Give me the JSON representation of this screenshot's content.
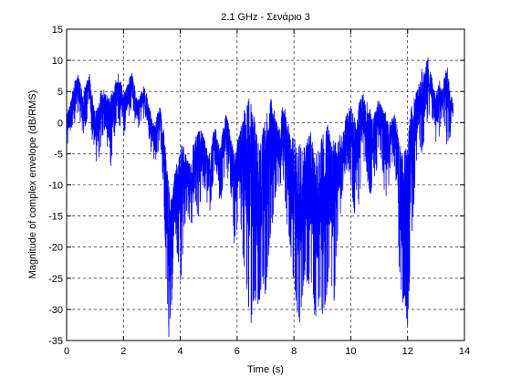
{
  "chart_data": {
    "type": "line",
    "title": "2.1 GHz - Σενάριο 3",
    "xlabel": "Time (s)",
    "ylabel": "Magnitude of complex envelope (dB/RMS)",
    "xlim": [
      0,
      14
    ],
    "ylim": [
      -35,
      15
    ],
    "xticks": [
      0,
      2,
      4,
      6,
      8,
      10,
      12,
      14
    ],
    "yticks": [
      15,
      10,
      5,
      0,
      -5,
      -10,
      -15,
      -20,
      -25,
      -30,
      -35
    ],
    "grid": true,
    "grid_style": "dashed",
    "series_color": "#0000ff",
    "series": [
      {
        "x": [
          0.0,
          0.1,
          0.2,
          0.3,
          0.4,
          0.5,
          0.6,
          0.7,
          0.8,
          0.9,
          1.0,
          1.1,
          1.2,
          1.3,
          1.4,
          1.5,
          1.6,
          1.7,
          1.8,
          1.9,
          2.0,
          2.1,
          2.2,
          2.3,
          2.4,
          2.5,
          2.6,
          2.7,
          2.8,
          2.9,
          3.0,
          3.1,
          3.2,
          3.3,
          3.4,
          3.5,
          3.6,
          3.7,
          3.8,
          3.9,
          4.0,
          4.1,
          4.2,
          4.3,
          4.4,
          4.5,
          4.6,
          4.7,
          4.8,
          4.9,
          5.0,
          5.1,
          5.2,
          5.3,
          5.4,
          5.5,
          5.6,
          5.7,
          5.8,
          5.9,
          6.0,
          6.1,
          6.2,
          6.3,
          6.4,
          6.5,
          6.6,
          6.7,
          6.8,
          6.9,
          7.0,
          7.1,
          7.2,
          7.3,
          7.4,
          7.5,
          7.6,
          7.7,
          7.8,
          7.9,
          8.0,
          8.1,
          8.2,
          8.3,
          8.4,
          8.5,
          8.6,
          8.7,
          8.8,
          8.9,
          9.0,
          9.1,
          9.2,
          9.3,
          9.4,
          9.5,
          9.6,
          9.7,
          9.8,
          9.9,
          10.0,
          10.1,
          10.2,
          10.3,
          10.4,
          10.5,
          10.6,
          10.7,
          10.8,
          10.9,
          11.0,
          11.1,
          11.2,
          11.3,
          11.4,
          11.5,
          11.6,
          11.7,
          11.8,
          11.9,
          12.0,
          12.1,
          12.2,
          12.3,
          12.4,
          12.5,
          12.6,
          12.7,
          12.8,
          12.9,
          13.0,
          13.1,
          13.2,
          13.3,
          13.4,
          13.5,
          13.6
        ],
        "lo": [
          -5,
          -3,
          -1,
          0,
          1,
          -1,
          -2,
          0,
          1,
          -3,
          -6,
          -8,
          -4,
          -2,
          -1,
          -10,
          -5,
          -2,
          0,
          -1,
          -3,
          0,
          1,
          2,
          0,
          -2,
          0,
          1,
          -1,
          -4,
          -5,
          -7,
          -5,
          -4,
          -10,
          -25,
          -35,
          -30,
          -15,
          -22,
          -27,
          -20,
          -15,
          -16,
          -18,
          -12,
          -16,
          -14,
          -10,
          -12,
          -16,
          -12,
          -9,
          -12,
          -14,
          -10,
          -8,
          -10,
          -12,
          -20,
          -17,
          -14,
          -22,
          -25,
          -30,
          -33,
          -28,
          -31,
          -29,
          -25,
          -28,
          -22,
          -18,
          -14,
          -10,
          -12,
          -8,
          -14,
          -18,
          -22,
          -26,
          -30,
          -33,
          -28,
          -24,
          -27,
          -25,
          -30,
          -33,
          -28,
          -32,
          -30,
          -26,
          -24,
          -31,
          -20,
          -16,
          -12,
          -9,
          -7,
          -10,
          -14,
          -18,
          -12,
          -8,
          -6,
          -10,
          -12,
          -9,
          -8,
          -5,
          -8,
          -12,
          -14,
          -8,
          -6,
          -10,
          -23,
          -30,
          -28,
          -34,
          -22,
          -15,
          -8,
          -4,
          -6,
          -3,
          0,
          2,
          -1,
          -5,
          -3,
          0,
          -2,
          -4,
          -3,
          -1
        ],
        "hi": [
          2,
          3,
          5,
          7,
          8,
          6,
          5,
          7,
          8,
          5,
          2,
          3,
          5,
          6,
          5,
          4,
          5,
          7,
          8,
          7,
          5,
          6,
          7,
          8,
          6,
          4,
          5,
          6,
          5,
          3,
          1,
          0,
          2,
          3,
          0,
          -5,
          -10,
          -12,
          -8,
          -6,
          -4,
          -3,
          -5,
          -6,
          -5,
          -2,
          -1,
          0,
          -1,
          -3,
          -5,
          -3,
          0,
          -2,
          -4,
          -1,
          2,
          0,
          -2,
          -5,
          -3,
          -1,
          1,
          3,
          5,
          3,
          1,
          -2,
          -4,
          -1,
          1,
          3,
          4,
          2,
          0,
          -1,
          3,
          2,
          0,
          -3,
          -1,
          -4,
          -2,
          -5,
          -3,
          -2,
          -1,
          -3,
          -5,
          -4,
          -2,
          -1,
          0,
          -3,
          -2,
          -4,
          -1,
          -2,
          1,
          2,
          3,
          2,
          0,
          4,
          5,
          4,
          3,
          2,
          1,
          3,
          4,
          3,
          2,
          1,
          0,
          2,
          1,
          -3,
          -5,
          -4,
          -3,
          2,
          4,
          5,
          7,
          9,
          8,
          11,
          9,
          6,
          5,
          7,
          6,
          8,
          9,
          5,
          4
        ]
      }
    ]
  }
}
